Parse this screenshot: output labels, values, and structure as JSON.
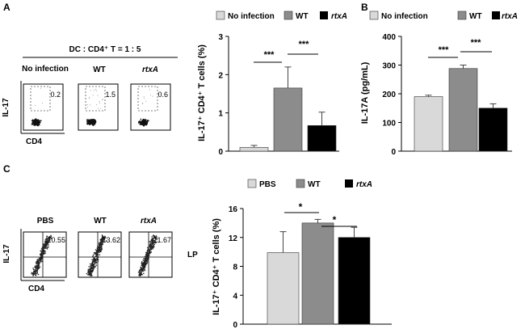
{
  "panel_a": {
    "label": "A",
    "dc_ratio": "DC : CD4⁺ T = 1 : 5",
    "axis_y": "IL-17",
    "axis_x": "CD4",
    "plots": [
      {
        "title": "No infection",
        "value": "0.2"
      },
      {
        "title": "WT",
        "value": "1.5"
      },
      {
        "title": "rtxA",
        "value": "0.6"
      }
    ]
  },
  "panel_b": {
    "label": "B"
  },
  "panel_c": {
    "label": "C",
    "axis_y": "IL-17",
    "axis_x": "CD4",
    "side_label": "LP",
    "plots": [
      {
        "title": "PBS",
        "value": "10.55"
      },
      {
        "title": "WT",
        "value": "13.62"
      },
      {
        "title": "rtxA",
        "value": "11.67"
      }
    ]
  },
  "colors": {
    "light": "#d9d9d9",
    "mid": "#8c8c8c",
    "dark": "#000000"
  },
  "chart_data": [
    {
      "id": "chartA",
      "type": "bar",
      "categories": [
        "No infection",
        "WT",
        "rtxA"
      ],
      "values": [
        0.1,
        1.65,
        0.67
      ],
      "errors": [
        0.05,
        0.55,
        0.35
      ],
      "ylabel": "IL-17⁺ CD4⁺ T cells (%)",
      "ylim": [
        0,
        3
      ],
      "yticks": [
        "0",
        "1",
        "2",
        "3"
      ],
      "legend": [
        "No infection",
        "WT",
        "rtxA"
      ],
      "significance": [
        "***",
        "***"
      ]
    },
    {
      "id": "chartB",
      "type": "bar",
      "categories": [
        "No infection",
        "WT",
        "rtxA"
      ],
      "values": [
        190,
        288,
        150
      ],
      "errors": [
        5,
        12,
        15
      ],
      "ylabel": "IL-17A (pg/mL)",
      "ylim": [
        0,
        400
      ],
      "yticks": [
        "0",
        "100",
        "200",
        "300",
        "400"
      ],
      "legend": [
        "No infection",
        "WT",
        "rtxA"
      ],
      "significance": [
        "***",
        "***"
      ]
    },
    {
      "id": "chartC",
      "type": "bar",
      "categories": [
        "PBS",
        "WT",
        "rtxA"
      ],
      "values": [
        9.9,
        14.0,
        12.0
      ],
      "errors": [
        2.9,
        0.5,
        1.4
      ],
      "ylabel": "IL-17⁺ CD4⁺ T cells (%)",
      "ylim": [
        0,
        16
      ],
      "yticks": [
        "0",
        "4",
        "8",
        "12",
        "16"
      ],
      "legend": [
        "PBS",
        "WT",
        "rtxA"
      ],
      "significance": [
        "*",
        "*"
      ]
    }
  ]
}
